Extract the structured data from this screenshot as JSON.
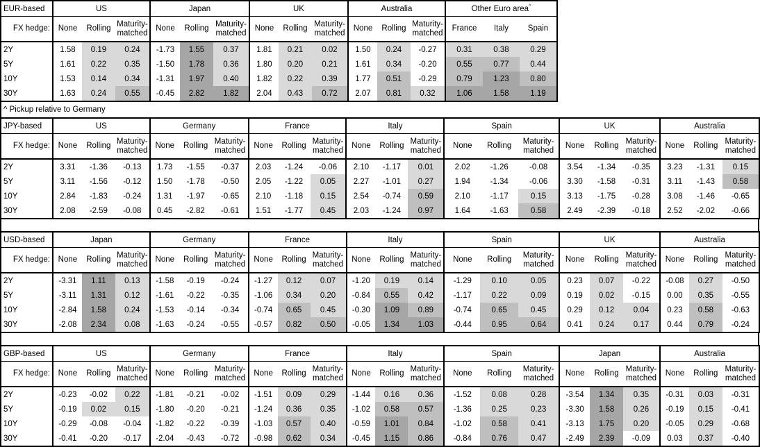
{
  "footnote": "^ Pickup relative to Germany",
  "fx_hedge_label": "FX hedge:",
  "tenors": [
    "2Y",
    "5Y",
    "10Y",
    "30Y"
  ],
  "heatmap": {
    "white": "#ffffff",
    "light": "#d9d9d9",
    "medium": "#bfbfbf",
    "dark": "#a6a6a6",
    "thresholds": [
      0,
      0.5,
      1.0
    ]
  },
  "blocks": [
    {
      "id": "eur-based",
      "label": "EUR-based",
      "groups": [
        {
          "name": "US",
          "cols": [
            "None",
            "Rolling",
            "Maturity-matched"
          ],
          "shaded_cols": [
            1,
            2
          ],
          "rows": [
            [
              "1.58",
              "0.19",
              "0.24"
            ],
            [
              "1.61",
              "0.22",
              "0.35"
            ],
            [
              "1.53",
              "0.14",
              "0.34"
            ],
            [
              "1.63",
              "0.24",
              "0.55"
            ]
          ]
        },
        {
          "name": "Japan",
          "cols": [
            "None",
            "Rolling",
            "Maturity-matched"
          ],
          "shaded_cols": [
            1,
            2
          ],
          "rows": [
            [
              "-1.73",
              "1.55",
              "0.37"
            ],
            [
              "-1.50",
              "1.78",
              "0.36"
            ],
            [
              "-1.31",
              "1.97",
              "0.40"
            ],
            [
              "-0.45",
              "2.82",
              "1.82"
            ]
          ]
        },
        {
          "name": "UK",
          "cols": [
            "None",
            "Rolling",
            "Maturity-matched"
          ],
          "shaded_cols": [
            1,
            2
          ],
          "rows": [
            [
              "1.81",
              "0.21",
              "0.02"
            ],
            [
              "1.80",
              "0.20",
              "0.21"
            ],
            [
              "1.82",
              "0.22",
              "0.39"
            ],
            [
              "2.04",
              "0.43",
              "0.72"
            ]
          ]
        },
        {
          "name": "Australia",
          "cols": [
            "None",
            "Rolling",
            "Maturity-matched"
          ],
          "shaded_cols": [
            1,
            2
          ],
          "rows": [
            [
              "1.50",
              "0.24",
              "-0.27"
            ],
            [
              "1.61",
              "0.34",
              "-0.20"
            ],
            [
              "1.77",
              "0.51",
              "-0.29"
            ],
            [
              "2.07",
              "0.81",
              "0.32"
            ]
          ]
        },
        {
          "name": "Other Euro area",
          "footnote_mark": "^",
          "cols": [
            "France",
            "Italy",
            "Spain"
          ],
          "shaded_cols": [
            0,
            1,
            2
          ],
          "rows": [
            [
              "0.31",
              "0.38",
              "0.29"
            ],
            [
              "0.55",
              "0.77",
              "0.44"
            ],
            [
              "0.79",
              "1.23",
              "0.80"
            ],
            [
              "1.06",
              "1.58",
              "1.19"
            ]
          ]
        }
      ]
    },
    {
      "id": "jpy-based",
      "label": "JPY-based",
      "groups": [
        {
          "name": "US",
          "cols": [
            "None",
            "Rolling",
            "Maturity-matched"
          ],
          "shaded_cols": [
            1,
            2
          ],
          "rows": [
            [
              "3.31",
              "-1.36",
              "-0.13"
            ],
            [
              "3.11",
              "-1.56",
              "-0.12"
            ],
            [
              "2.84",
              "-1.83",
              "-0.24"
            ],
            [
              "2.08",
              "-2.59",
              "-0.08"
            ]
          ]
        },
        {
          "name": "Germany",
          "cols": [
            "None",
            "Rolling",
            "Maturity-matched"
          ],
          "shaded_cols": [
            1,
            2
          ],
          "rows": [
            [
              "1.73",
              "-1.55",
              "-0.37"
            ],
            [
              "1.50",
              "-1.78",
              "-0.50"
            ],
            [
              "1.31",
              "-1.97",
              "-0.65"
            ],
            [
              "0.45",
              "-2.82",
              "-0.61"
            ]
          ]
        },
        {
          "name": "France",
          "cols": [
            "None",
            "Rolling",
            "Maturity-matched"
          ],
          "shaded_cols": [
            1,
            2
          ],
          "rows": [
            [
              "2.03",
              "-1.24",
              "-0.06"
            ],
            [
              "2.05",
              "-1.22",
              "0.05"
            ],
            [
              "2.10",
              "-1.18",
              "0.15"
            ],
            [
              "1.51",
              "-1.77",
              "0.45"
            ]
          ]
        },
        {
          "name": "Italy",
          "cols": [
            "None",
            "Rolling",
            "Maturity-matched"
          ],
          "shaded_cols": [
            1,
            2
          ],
          "rows": [
            [
              "2.10",
              "-1.17",
              "0.01"
            ],
            [
              "2.27",
              "-1.01",
              "0.27"
            ],
            [
              "2.54",
              "-0.74",
              "0.59"
            ],
            [
              "2.03",
              "-1.24",
              "0.97"
            ]
          ]
        },
        {
          "name": "Spain",
          "cols": [
            "None",
            "Rolling",
            "Maturity-matched"
          ],
          "shaded_cols": [
            1,
            2
          ],
          "rows": [
            [
              "2.02",
              "-1.26",
              "-0.08"
            ],
            [
              "1.94",
              "-1.34",
              "-0.06"
            ],
            [
              "2.10",
              "-1.17",
              "0.15"
            ],
            [
              "1.64",
              "-1.63",
              "0.58"
            ]
          ]
        },
        {
          "name": "UK",
          "cols": [
            "None",
            "Rolling",
            "Maturity-matched"
          ],
          "shaded_cols": [
            1,
            2
          ],
          "rows": [
            [
              "3.54",
              "-1.34",
              "-0.35"
            ],
            [
              "3.30",
              "-1.58",
              "-0.31"
            ],
            [
              "3.13",
              "-1.75",
              "-0.28"
            ],
            [
              "2.49",
              "-2.39",
              "-0.18"
            ]
          ]
        },
        {
          "name": "Australia",
          "cols": [
            "None",
            "Rolling",
            "Maturity-matched"
          ],
          "shaded_cols": [
            1,
            2
          ],
          "rows": [
            [
              "3.23",
              "-1.31",
              "0.15"
            ],
            [
              "3.11",
              "-1.43",
              "0.58"
            ],
            [
              "3.08",
              "-1.46",
              "-0.65"
            ],
            [
              "2.52",
              "-2.02",
              "-0.66"
            ]
          ]
        }
      ]
    },
    {
      "id": "usd-based",
      "label": "USD-based",
      "groups": [
        {
          "name": "Japan",
          "cols": [
            "None",
            "Rolling",
            "Maturity-matched"
          ],
          "shaded_cols": [
            1,
            2
          ],
          "rows": [
            [
              "-3.31",
              "1.11",
              "0.13"
            ],
            [
              "-3.11",
              "1.31",
              "0.12"
            ],
            [
              "-2.84",
              "1.58",
              "0.24"
            ],
            [
              "-2.08",
              "2.34",
              "0.08"
            ]
          ]
        },
        {
          "name": "Germany",
          "cols": [
            "None",
            "Rolling",
            "Maturity-matched"
          ],
          "shaded_cols": [
            1,
            2
          ],
          "rows": [
            [
              "-1.58",
              "-0.19",
              "-0.24"
            ],
            [
              "-1.61",
              "-0.22",
              "-0.35"
            ],
            [
              "-1.53",
              "-0.14",
              "-0.34"
            ],
            [
              "-1.63",
              "-0.24",
              "-0.55"
            ]
          ]
        },
        {
          "name": "France",
          "cols": [
            "None",
            "Rolling",
            "Maturity-matched"
          ],
          "shaded_cols": [
            1,
            2
          ],
          "rows": [
            [
              "-1.27",
              "0.12",
              "0.07"
            ],
            [
              "-1.06",
              "0.34",
              "0.20"
            ],
            [
              "-0.74",
              "0.65",
              "0.45"
            ],
            [
              "-0.57",
              "0.82",
              "0.50"
            ]
          ]
        },
        {
          "name": "Italy",
          "cols": [
            "None",
            "Rolling",
            "Maturity-matched"
          ],
          "shaded_cols": [
            1,
            2
          ],
          "rows": [
            [
              "-1.20",
              "0.19",
              "0.14"
            ],
            [
              "-0.84",
              "0.55",
              "0.42"
            ],
            [
              "-0.30",
              "1.09",
              "0.89"
            ],
            [
              "-0.05",
              "1.34",
              "1.03"
            ]
          ]
        },
        {
          "name": "Spain",
          "cols": [
            "None",
            "Rolling",
            "Maturity-matched"
          ],
          "shaded_cols": [
            1,
            2
          ],
          "rows": [
            [
              "-1.29",
              "0.10",
              "0.05"
            ],
            [
              "-1.17",
              "0.22",
              "0.09"
            ],
            [
              "-0.74",
              "0.65",
              "0.45"
            ],
            [
              "-0.44",
              "0.95",
              "0.64"
            ]
          ]
        },
        {
          "name": "UK",
          "cols": [
            "None",
            "Rolling",
            "Maturity-matched"
          ],
          "shaded_cols": [
            1,
            2
          ],
          "rows": [
            [
              "0.23",
              "0.07",
              "-0.22"
            ],
            [
              "0.19",
              "0.02",
              "-0.15"
            ],
            [
              "0.29",
              "0.12",
              "0.04"
            ],
            [
              "0.41",
              "0.24",
              "0.17"
            ]
          ]
        },
        {
          "name": "Australia",
          "cols": [
            "None",
            "Rolling",
            "Maturity-matched"
          ],
          "shaded_cols": [
            1,
            2
          ],
          "rows": [
            [
              "-0.08",
              "0.27",
              "-0.50"
            ],
            [
              "0.00",
              "0.35",
              "-0.55"
            ],
            [
              "0.23",
              "0.58",
              "-0.63"
            ],
            [
              "0.44",
              "0.79",
              "-0.24"
            ]
          ]
        }
      ]
    },
    {
      "id": "gbp-based",
      "label": "GBP-based",
      "groups": [
        {
          "name": "US",
          "cols": [
            "None",
            "Rolling",
            "Maturity-matched"
          ],
          "shaded_cols": [
            1,
            2
          ],
          "rows": [
            [
              "-0.23",
              "-0.02",
              "0.22"
            ],
            [
              "-0.19",
              "0.02",
              "0.15"
            ],
            [
              "-0.29",
              "-0.08",
              "-0.04"
            ],
            [
              "-0.41",
              "-0.20",
              "-0.17"
            ]
          ]
        },
        {
          "name": "Germany",
          "cols": [
            "None",
            "Rolling",
            "Maturity-matched"
          ],
          "shaded_cols": [
            1,
            2
          ],
          "rows": [
            [
              "-1.81",
              "-0.21",
              "-0.02"
            ],
            [
              "-1.80",
              "-0.20",
              "-0.21"
            ],
            [
              "-1.82",
              "-0.22",
              "-0.39"
            ],
            [
              "-2.04",
              "-0.43",
              "-0.72"
            ]
          ]
        },
        {
          "name": "France",
          "cols": [
            "None",
            "Rolling",
            "Maturity-matched"
          ],
          "shaded_cols": [
            1,
            2
          ],
          "rows": [
            [
              "-1.51",
              "0.09",
              "0.29"
            ],
            [
              "-1.24",
              "0.36",
              "0.35"
            ],
            [
              "-1.03",
              "0.57",
              "0.40"
            ],
            [
              "-0.98",
              "0.62",
              "0.34"
            ]
          ]
        },
        {
          "name": "Italy",
          "cols": [
            "None",
            "Rolling",
            "Maturity-matched"
          ],
          "shaded_cols": [
            1,
            2
          ],
          "rows": [
            [
              "-1.44",
              "0.16",
              "0.36"
            ],
            [
              "-1.02",
              "0.58",
              "0.57"
            ],
            [
              "-0.59",
              "1.01",
              "0.84"
            ],
            [
              "-0.45",
              "1.15",
              "0.86"
            ]
          ]
        },
        {
          "name": "Spain",
          "cols": [
            "None",
            "Rolling",
            "Maturity-matched"
          ],
          "shaded_cols": [
            1,
            2
          ],
          "rows": [
            [
              "-1.52",
              "0.08",
              "0.28"
            ],
            [
              "-1.36",
              "0.25",
              "0.23"
            ],
            [
              "-1.02",
              "0.58",
              "0.41"
            ],
            [
              "-0.84",
              "0.76",
              "0.47"
            ]
          ]
        },
        {
          "name": "Japan",
          "cols": [
            "None",
            "Rolling",
            "Maturity-matched"
          ],
          "shaded_cols": [
            1,
            2
          ],
          "rows": [
            [
              "-3.54",
              "1.34",
              "0.35"
            ],
            [
              "-3.30",
              "1.58",
              "0.26"
            ],
            [
              "-3.13",
              "1.75",
              "0.20"
            ],
            [
              "-2.49",
              "2.39",
              "-0.09"
            ]
          ]
        },
        {
          "name": "Australia",
          "cols": [
            "None",
            "Rolling",
            "Maturity-matched"
          ],
          "shaded_cols": [
            1,
            2
          ],
          "rows": [
            [
              "-0.31",
              "0.03",
              "-0.31"
            ],
            [
              "-0.19",
              "0.15",
              "-0.41"
            ],
            [
              "-0.05",
              "0.29",
              "-0.68"
            ],
            [
              "0.03",
              "0.37",
              "-0.40"
            ]
          ]
        }
      ]
    }
  ]
}
